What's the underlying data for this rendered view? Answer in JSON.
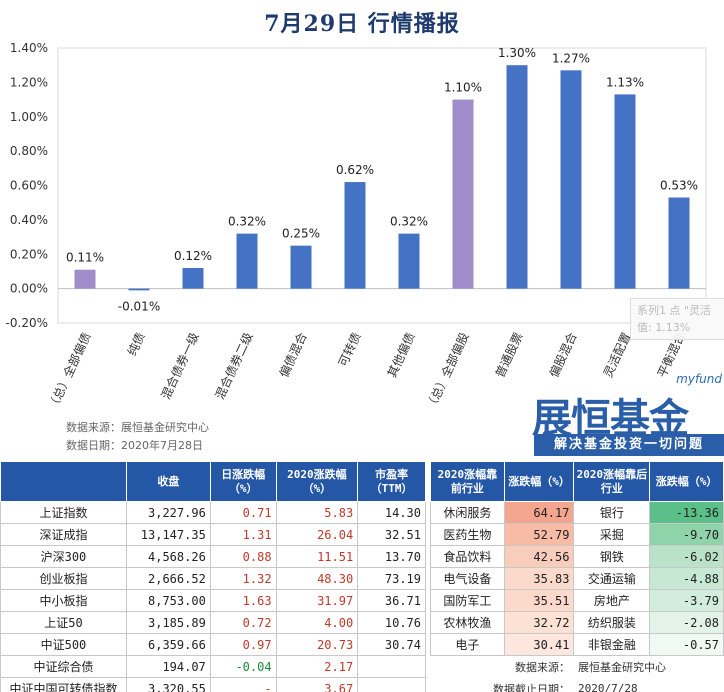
{
  "title": "7月29日  行情播报",
  "chart_data": {
    "type": "bar",
    "categories": [
      "（总）全部偏债",
      "纯债",
      "混合债券一级",
      "混合债券二级",
      "偏债混合",
      "可转债",
      "其他偏债",
      "（总）全部偏股",
      "普通股票",
      "偏股混合",
      "灵活配置",
      "平衡混合"
    ],
    "values": [
      0.11,
      -0.01,
      0.12,
      0.32,
      0.25,
      0.62,
      0.32,
      1.1,
      1.3,
      1.27,
      1.13,
      0.53
    ],
    "data_labels": [
      "0.11%",
      "-0.01%",
      "0.12%",
      "0.32%",
      "0.25%",
      "0.62%",
      "0.32%",
      "1.10%",
      "1.30%",
      "1.27%",
      "1.13%",
      "0.53%"
    ],
    "highlight": [
      true,
      false,
      false,
      false,
      false,
      false,
      false,
      true,
      false,
      false,
      false,
      false
    ],
    "yticks": [
      "1.40%",
      "1.20%",
      "1.00%",
      "0.80%",
      "0.60%",
      "0.40%",
      "0.20%",
      "0.00%",
      "-0.20%"
    ],
    "ytick_values": [
      1.4,
      1.2,
      1.0,
      0.8,
      0.6,
      0.4,
      0.2,
      0.0,
      -0.2
    ],
    "ylim": [
      -0.2,
      1.4
    ],
    "colors": {
      "normal": "#4472c4",
      "highlight": "#a08cc8"
    },
    "grid": false,
    "tooltip": {
      "line1": "系列1 点 \"灵活",
      "line2": "值: 1.13%"
    }
  },
  "source": {
    "line1": "数据来源：展恒基金研究中心",
    "line2": "数据日期：2020年7月28日"
  },
  "logo": {
    "brand_small": "myfund",
    "brand_big": "展恒基金",
    "slogan": "解决基金投资一切问题"
  },
  "index_table": {
    "headers": [
      "",
      "收盘",
      "日涨跌幅（%）",
      "2020涨跌幅（%）",
      "市盈率（TTM）"
    ],
    "rows": [
      {
        "name": "上证指数",
        "close": "3,227.96",
        "day": "0.71",
        "ytd": "5.83",
        "pe": "14.30",
        "day_sign": "pos",
        "ytd_sign": "pos"
      },
      {
        "name": "深证成指",
        "close": "13,147.35",
        "day": "1.31",
        "ytd": "26.04",
        "pe": "32.51",
        "day_sign": "pos",
        "ytd_sign": "pos"
      },
      {
        "name": "沪深300",
        "close": "4,568.26",
        "day": "0.88",
        "ytd": "11.51",
        "pe": "13.70",
        "day_sign": "pos",
        "ytd_sign": "pos"
      },
      {
        "name": "创业板指",
        "close": "2,666.52",
        "day": "1.32",
        "ytd": "48.30",
        "pe": "73.19",
        "day_sign": "pos",
        "ytd_sign": "pos"
      },
      {
        "name": "中小板指",
        "close": "8,753.00",
        "day": "1.63",
        "ytd": "31.97",
        "pe": "36.71",
        "day_sign": "pos",
        "ytd_sign": "pos"
      },
      {
        "name": "上证50",
        "close": "3,185.89",
        "day": "0.72",
        "ytd": "4.00",
        "pe": "10.76",
        "day_sign": "pos",
        "ytd_sign": "pos"
      },
      {
        "name": "中证500",
        "close": "6,359.66",
        "day": "0.97",
        "ytd": "20.73",
        "pe": "30.74",
        "day_sign": "pos",
        "ytd_sign": "pos"
      },
      {
        "name": "中证综合债",
        "close": "194.07",
        "day": "-0.04",
        "ytd": "2.17",
        "pe": "",
        "day_sign": "neg",
        "ytd_sign": "pos"
      },
      {
        "name": "中证中国可转债指数",
        "close": "3,320.55",
        "day": "-",
        "ytd": "3.67",
        "pe": "",
        "day_sign": "pos",
        "ytd_sign": "pos"
      }
    ]
  },
  "sector_table": {
    "headers": [
      "2020涨幅靠前行业",
      "涨跌幅（%）",
      "2020涨幅靠后行业",
      "涨跌幅（%）"
    ],
    "rows": [
      {
        "top": "休闲服务",
        "top_val": "64.17",
        "top_color": "#f4a58e",
        "bottom": "银行",
        "bottom_val": "-13.36",
        "bottom_color": "#5bbf8a"
      },
      {
        "top": "医药生物",
        "top_val": "52.79",
        "top_color": "#f7bba6",
        "bottom": "采掘",
        "bottom_val": "-9.70",
        "bottom_color": "#8fd3ab"
      },
      {
        "top": "食品饮料",
        "top_val": "42.56",
        "top_color": "#f9cdbc",
        "bottom": "钢铁",
        "bottom_val": "-6.02",
        "bottom_color": "#b9e2c8"
      },
      {
        "top": "电气设备",
        "top_val": "35.83",
        "top_color": "#fbd9cb",
        "bottom": "交通运输",
        "bottom_val": "-4.88",
        "bottom_color": "#c7e8d3"
      },
      {
        "top": "国防军工",
        "top_val": "35.51",
        "top_color": "#fbdacc",
        "bottom": "房地产",
        "bottom_val": "-3.79",
        "bottom_color": "#d3eddc"
      },
      {
        "top": "农林牧渔",
        "top_val": "32.72",
        "top_color": "#fce1d5",
        "bottom": "纺织服装",
        "bottom_val": "-2.08",
        "bottom_color": "#e3f3e8"
      },
      {
        "top": "电子",
        "top_val": "30.41",
        "top_color": "#fde7de",
        "bottom": "非银金融",
        "bottom_val": "-0.57",
        "bottom_color": "#f1f9f4"
      }
    ],
    "footer": [
      {
        "label": "数据来源：",
        "value": "展恒基金研究中心"
      },
      {
        "label": "数据截止日期：",
        "value": "2020/7/28"
      }
    ]
  }
}
